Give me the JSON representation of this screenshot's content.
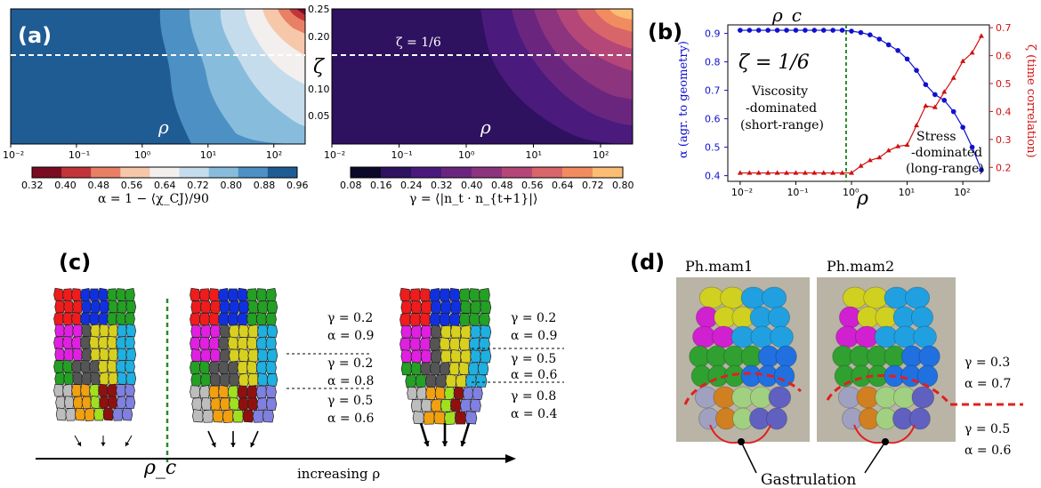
{
  "panel_labels": {
    "a": "(a)",
    "b": "(b)",
    "c": "(c)",
    "d": "(d)"
  },
  "panel_a": {
    "heatmap_left": {
      "xlabel": "ρ",
      "ylabel": "ζ",
      "x_ticks": [
        "10⁻²",
        "10⁻¹",
        "10⁰",
        "10¹",
        "10²"
      ],
      "y_ticks": [
        "0.25",
        "0.20",
        "0.15",
        "0.10",
        "0.05"
      ],
      "colorbar_ticks": [
        "0.32",
        "0.40",
        "0.48",
        "0.56",
        "0.64",
        "0.72",
        "0.80",
        "0.88",
        "0.96"
      ],
      "colorbar_colors": [
        "#7a0c22",
        "#c1353a",
        "#e88066",
        "#f7c7aa",
        "#f2efee",
        "#c4dcec",
        "#88bcdc",
        "#4d90c4",
        "#1f5c94"
      ],
      "colorbar_label": "α = 1 − ⟨χ_CJ⟩/90"
    },
    "heatmap_right": {
      "xlabel": "ρ",
      "zeta_annotation": "ζ = 1/6",
      "colorbar_ticks": [
        "0.08",
        "0.16",
        "0.24",
        "0.32",
        "0.40",
        "0.48",
        "0.56",
        "0.64",
        "0.72",
        "0.80"
      ],
      "colorbar_colors": [
        "#0c0827",
        "#2e115f",
        "#4a1a7c",
        "#6a267f",
        "#8d347e",
        "#b44778",
        "#d8656a",
        "#f08c5f",
        "#fbbd74"
      ],
      "colorbar_label": "γ = ⟨|n_t · n_{t+1}|⟩"
    }
  },
  "chart_data": {
    "type": "line",
    "title": "ρ_c",
    "xlabel": "ρ",
    "ylabel_left": "α (agr. to geometry)",
    "ylabel_right": "ζ (time correlation)",
    "x_scale": "log",
    "xlim": [
      0.006,
      300
    ],
    "ylim_left": [
      0.38,
      0.93
    ],
    "ylim_right": [
      0.15,
      0.71
    ],
    "x_ticks": [
      "10⁻²",
      "10⁻¹",
      "10⁰",
      "10¹",
      "10²"
    ],
    "y_ticks_left": [
      "0.4",
      "0.5",
      "0.6",
      "0.7",
      "0.8",
      "0.9"
    ],
    "y_ticks_right": [
      "0.2",
      "0.3",
      "0.4",
      "0.5",
      "0.6",
      "0.7"
    ],
    "series": [
      {
        "name": "α",
        "color": "#1010d0",
        "marker": "circle",
        "x": [
          0.01,
          0.0147,
          0.0215,
          0.0316,
          0.0464,
          0.0681,
          0.1,
          0.147,
          0.215,
          0.316,
          0.464,
          0.681,
          1.0,
          1.47,
          2.15,
          3.16,
          4.64,
          6.81,
          10,
          14.7,
          21.5,
          31.6,
          46.4,
          68.1,
          100,
          147,
          215
        ],
        "y": [
          0.911,
          0.911,
          0.911,
          0.911,
          0.911,
          0.911,
          0.911,
          0.911,
          0.911,
          0.911,
          0.911,
          0.911,
          0.908,
          0.903,
          0.895,
          0.88,
          0.86,
          0.84,
          0.81,
          0.77,
          0.72,
          0.685,
          0.665,
          0.625,
          0.57,
          0.5,
          0.42
        ]
      },
      {
        "name": "ζ",
        "color": "#d01010",
        "marker": "triangle",
        "x": [
          0.01,
          0.0147,
          0.0215,
          0.0316,
          0.0464,
          0.0681,
          0.1,
          0.147,
          0.215,
          0.316,
          0.464,
          0.681,
          1.0,
          1.47,
          2.15,
          3.16,
          4.64,
          6.81,
          10,
          14.7,
          21.5,
          31.6,
          46.4,
          68.1,
          100,
          147,
          215
        ],
        "y": [
          0.18,
          0.18,
          0.18,
          0.18,
          0.18,
          0.18,
          0.18,
          0.18,
          0.18,
          0.18,
          0.18,
          0.18,
          0.18,
          0.205,
          0.225,
          0.235,
          0.26,
          0.275,
          0.28,
          0.35,
          0.42,
          0.415,
          0.47,
          0.52,
          0.58,
          0.61,
          0.67
        ]
      }
    ],
    "rho_c": 0.8,
    "annotations": {
      "zeta": "ζ = 1/6",
      "viscous": [
        "Viscosity",
        "-dominated",
        "(short-range)"
      ],
      "stress": [
        "Stress",
        "-dominated",
        "(long-range)"
      ]
    }
  },
  "panel_c": {
    "rho_c": "ρ_c",
    "axis_label": "increasing ρ",
    "middle_values": [
      {
        "gamma": "γ = 0.2",
        "alpha": "α = 0.9"
      },
      {
        "gamma": "γ = 0.2",
        "alpha": "α = 0.8"
      },
      {
        "gamma": "γ = 0.5",
        "alpha": "α = 0.6"
      }
    ],
    "right_values": [
      {
        "gamma": "γ = 0.2",
        "alpha": "α = 0.9"
      },
      {
        "gamma": "γ = 0.5",
        "alpha": "α = 0.6"
      },
      {
        "gamma": "γ = 0.8",
        "alpha": "α = 0.4"
      }
    ]
  },
  "panel_d": {
    "left_title": "Ph.mam1",
    "right_title": "Ph.mam2",
    "values": [
      {
        "gamma": "γ = 0.3",
        "alpha": "α = 0.7"
      },
      {
        "gamma": "γ = 0.5",
        "alpha": "α = 0.6"
      }
    ],
    "gastrulation": "Gastrulation"
  }
}
